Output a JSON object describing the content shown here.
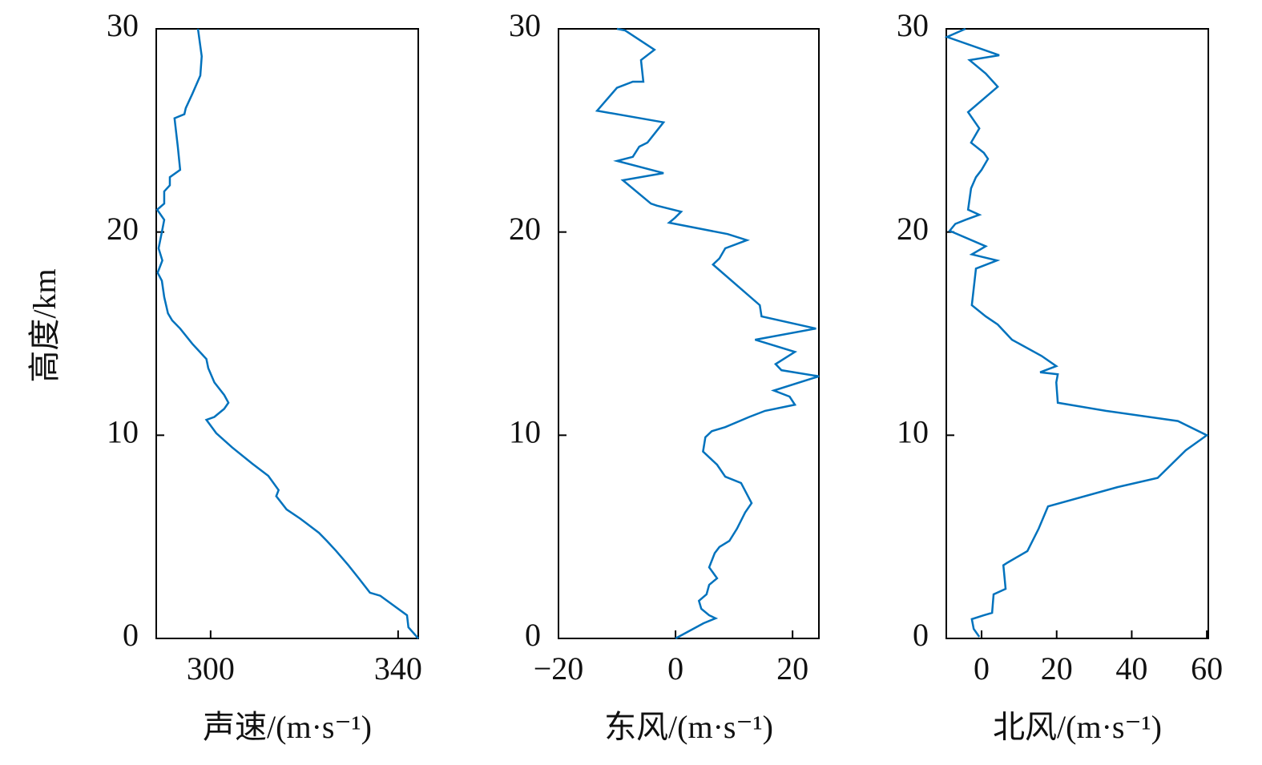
{
  "chart_data": [
    {
      "type": "line",
      "x_label": "声速/(m·s⁻¹)",
      "y_label": "高度/km",
      "xlim": [
        288.4,
        344.3
      ],
      "xticks": [
        300,
        340
      ],
      "ylim": [
        0,
        30
      ],
      "yticks": [
        0,
        10,
        20,
        30
      ],
      "series": [
        {
          "color": "#0072bd",
          "x": [
            344.3,
            342.2,
            341.9,
            336.2,
            334.0,
            331.6,
            329.4,
            326.8,
            324.8,
            323.1,
            319.1,
            316.2,
            314.0,
            314.5,
            312.3,
            308.9,
            304.6,
            301.2,
            299.1,
            300.8,
            302.9,
            303.8,
            302.9,
            300.8,
            299.5,
            299.1,
            296.1,
            293.5,
            291.8,
            290.9,
            290.1,
            289.6,
            288.7,
            289.7,
            288.9,
            289.6,
            290.1,
            288.6,
            290.1,
            290.1,
            291.3,
            291.3,
            293.5,
            293.0,
            292.3,
            294.4,
            294.7,
            296.1,
            297.8,
            298.1,
            297.3
          ],
          "y": [
            0,
            0.55,
            1.14,
            2.1,
            2.25,
            2.96,
            3.6,
            4.3,
            4.8,
            5.2,
            5.9,
            6.35,
            7.0,
            7.3,
            8.0,
            8.6,
            9.4,
            10.1,
            10.76,
            10.9,
            11.3,
            11.6,
            11.98,
            12.6,
            13.3,
            13.75,
            14.5,
            15.25,
            15.65,
            16.0,
            16.8,
            17.6,
            18.0,
            18.6,
            19.2,
            20.0,
            20.6,
            21.1,
            21.4,
            22.0,
            22.3,
            22.7,
            23.06,
            24.2,
            25.6,
            25.8,
            26.1,
            26.8,
            27.7,
            28.65,
            30
          ]
        }
      ]
    },
    {
      "type": "line",
      "x_label": "东风/(m·s⁻¹)",
      "xlim": [
        -20,
        24.5
      ],
      "xticks": [
        {
          "value": -20,
          "label": "−20"
        },
        0,
        20
      ],
      "ylim": [
        0,
        30
      ],
      "yticks": [
        0,
        10,
        20,
        30
      ],
      "series": [
        {
          "color": "#0072bd",
          "x": [
            0,
            1.8,
            4.8,
            6.85,
            5.75,
            4.4,
            4.0,
            5.3,
            5.75,
            7.1,
            5.75,
            6.7,
            7.5,
            9.2,
            10.5,
            11.9,
            13.0,
            11.2,
            8.5,
            7.1,
            4.7,
            5.1,
            6.2,
            8.5,
            12.6,
            15.3,
            20.4,
            19.5,
            16.8,
            24.5,
            18.1,
            17.1,
            20.4,
            13.6,
            24.0,
            14.7,
            14.4,
            6.4,
            7.5,
            8.5,
            12.2,
            8.9,
            -1.1,
            -0.1,
            0.96,
            -3.2,
            -4.2,
            -9.0,
            -2.05,
            -10.0,
            -7.3,
            -6.2,
            -4.8,
            -2.05,
            -13.4,
            -10.0,
            -7.3,
            -5.5,
            -5.9,
            -3.6,
            -8.6,
            -10.0
          ],
          "y": [
            0,
            0.28,
            0.75,
            0.99,
            1.14,
            1.46,
            1.85,
            2.17,
            2.64,
            2.96,
            3.5,
            4.2,
            4.5,
            4.8,
            5.4,
            6.2,
            6.66,
            7.65,
            7.96,
            8.55,
            9.2,
            9.9,
            10.2,
            10.4,
            10.9,
            11.2,
            11.5,
            11.9,
            12.2,
            12.9,
            13.2,
            13.5,
            14.1,
            14.7,
            15.25,
            15.85,
            16.4,
            18.4,
            18.7,
            19.2,
            19.6,
            19.9,
            20.46,
            20.7,
            21.0,
            21.3,
            21.4,
            22.55,
            22.9,
            23.5,
            23.7,
            24.2,
            24.4,
            25.4,
            25.97,
            27.1,
            27.4,
            27.4,
            28.46,
            28.97,
            29.92,
            30
          ]
        }
      ]
    },
    {
      "type": "line",
      "x_label": "北风/(m·s⁻¹)",
      "xlim": [
        -9.4,
        60.4
      ],
      "xticks": [
        0,
        20,
        40,
        60
      ],
      "ylim": [
        0,
        30
      ],
      "yticks": [
        0,
        10,
        20,
        30
      ],
      "series": [
        {
          "color": "#0072bd",
          "x": [
            -0.6,
            -2.1,
            -2.6,
            0.6,
            2.8,
            3.2,
            6.4,
            5.8,
            7.0,
            12.2,
            15.2,
            17.7,
            36.3,
            46.9,
            54.4,
            60.0,
            52.3,
            33.1,
            20.3,
            19.9,
            20.3,
            15.6,
            19.9,
            16.0,
            8.1,
            4.3,
            1.1,
            -2.6,
            -1.5,
            4.1,
            -2.6,
            1.1,
            -8.5,
            -7.0,
            -4.3,
            -0.6,
            -3.6,
            -2.8,
            -1.5,
            0,
            1.7,
            0.6,
            -2.8,
            -0.6,
            -3.6,
            4.3,
            1.1,
            -3.2,
            4.7,
            -9.2,
            -4.3
          ],
          "y": [
            0.08,
            0.47,
            0.95,
            1.14,
            1.26,
            2.17,
            2.44,
            3.6,
            3.74,
            4.3,
            5.4,
            6.5,
            7.45,
            7.9,
            9.26,
            10.0,
            10.7,
            11.2,
            11.6,
            12.6,
            13.0,
            13.1,
            13.4,
            13.9,
            14.7,
            15.45,
            15.85,
            16.4,
            18.2,
            18.6,
            18.9,
            19.3,
            20.06,
            20.4,
            20.6,
            20.85,
            21.1,
            22.15,
            22.7,
            23.06,
            23.6,
            23.9,
            24.4,
            25.1,
            25.9,
            27.15,
            27.8,
            28.46,
            28.7,
            29.6,
            30
          ]
        }
      ]
    }
  ]
}
